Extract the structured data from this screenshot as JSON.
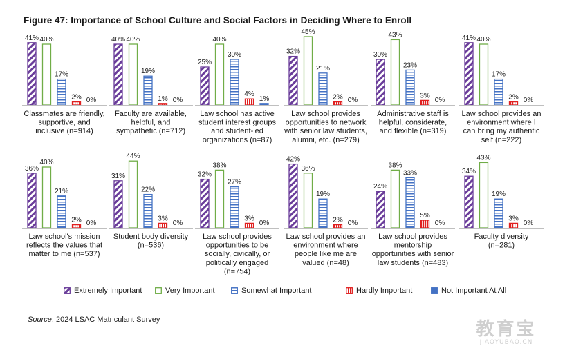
{
  "title": "Figure 47: Importance of School Culture and Social Factors in Deciding Where to Enroll",
  "source_label": "Source",
  "source_text": ": 2024 LSAC Matriculant Survey",
  "watermark": {
    "title": "教育宝",
    "url": "JIAOYUBAO.CN"
  },
  "colors": {
    "extremely": "#6a3d9a",
    "very": "#70ad47",
    "somewhat": "#4472c4",
    "hardly": "#e02020",
    "not": "#4472c4"
  },
  "chart_data": {
    "type": "bar",
    "ylim": [
      0,
      50
    ],
    "series": [
      {
        "name": "Extremely Important",
        "pattern": "diagonal"
      },
      {
        "name": "Very Important",
        "pattern": "solid-outline"
      },
      {
        "name": "Somewhat Important",
        "pattern": "horizontal"
      },
      {
        "name": "Hardly Important",
        "pattern": "vertical"
      },
      {
        "name": "Not Important At All",
        "pattern": "solid"
      }
    ],
    "panels": [
      {
        "lines": [
          "Classmates are friendly,",
          "supportive, and",
          "inclusive (n=914)"
        ],
        "values": [
          41,
          40,
          17,
          2,
          0
        ]
      },
      {
        "lines": [
          "Faculty are available,",
          "helpful, and",
          "sympathetic (n=712)"
        ],
        "values": [
          40,
          40,
          19,
          1,
          0
        ]
      },
      {
        "lines": [
          "Law school has active",
          "student interest groups",
          "and student-led",
          "organizations (n=87)"
        ],
        "values": [
          25,
          40,
          30,
          4,
          1
        ]
      },
      {
        "lines": [
          "Law school provides",
          "opportunities to network",
          "with senior law students,",
          "alumni, etc. (n=279)"
        ],
        "values": [
          32,
          45,
          21,
          2,
          0
        ]
      },
      {
        "lines": [
          "Administrative staff is",
          "helpful, considerate,",
          "and flexible (n=319)"
        ],
        "values": [
          30,
          43,
          23,
          3,
          0
        ]
      },
      {
        "lines": [
          "Law school provides an",
          "environment where I",
          "can bring my authentic",
          "self (n=222)"
        ],
        "values": [
          41,
          40,
          17,
          2,
          0
        ]
      },
      {
        "lines": [
          "Law school's mission",
          "reflects the values that",
          "matter to me (n=537)"
        ],
        "values": [
          36,
          40,
          21,
          2,
          0
        ]
      },
      {
        "lines": [
          "Student body diversity",
          "(n=536)"
        ],
        "values": [
          31,
          44,
          22,
          3,
          0
        ]
      },
      {
        "lines": [
          "Law school provides",
          "opportunities to be",
          "socially, civically, or",
          "politically engaged",
          "(n=754)"
        ],
        "values": [
          32,
          38,
          27,
          3,
          0
        ]
      },
      {
        "lines": [
          "Law school provides an",
          "environment where",
          "people like me are",
          "valued (n=48)"
        ],
        "values": [
          42,
          36,
          19,
          2,
          0
        ]
      },
      {
        "lines": [
          "Law school provides",
          "mentorship",
          "opportunities with senior",
          "law students (n=483)"
        ],
        "values": [
          24,
          38,
          33,
          5,
          0
        ]
      },
      {
        "lines": [
          "Faculty diversity",
          "(n=281)"
        ],
        "values": [
          34,
          43,
          19,
          3,
          0
        ]
      }
    ]
  }
}
